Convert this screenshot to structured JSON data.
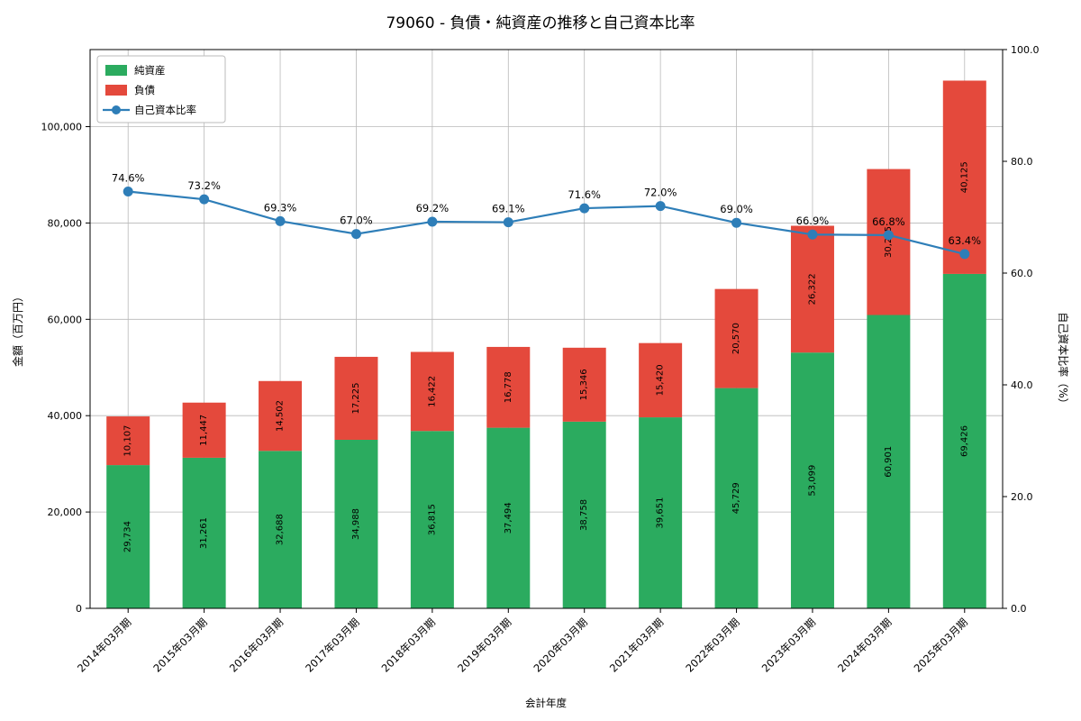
{
  "title": "79060 - 負債・純資産の推移と自己資本比率",
  "colors": {
    "net_assets": "#2bab5f",
    "liabilities": "#e4493c",
    "equity_line": "#2e7eb8",
    "grid": "#b8b8b8",
    "spine": "#000000"
  },
  "chart_data": {
    "type": "bar",
    "stacked": true,
    "title": "79060 - 負債・純資産の推移と自己資本比率",
    "xlabel": "会計年度",
    "ylabel_left": "金額（百万円）",
    "ylabel_right": "自己資本比率（%）",
    "categories": [
      "2014年03月期",
      "2015年03月期",
      "2016年03月期",
      "2017年03月期",
      "2018年03月期",
      "2019年03月期",
      "2020年03月期",
      "2021年03月期",
      "2022年03月期",
      "2023年03月期",
      "2024年03月期",
      "2025年03月期"
    ],
    "series": [
      {
        "name": "純資産",
        "type": "bar",
        "axis": "left",
        "color": "#2bab5f",
        "values": [
          29734,
          31261,
          32688,
          34988,
          36815,
          37494,
          38758,
          39651,
          45729,
          53099,
          60901,
          69426
        ]
      },
      {
        "name": "負債",
        "type": "bar",
        "axis": "left",
        "color": "#e4493c",
        "values": [
          10107,
          11447,
          14502,
          17225,
          16422,
          16778,
          15346,
          15420,
          20570,
          26322,
          30295,
          40125
        ]
      },
      {
        "name": "自己資本比率",
        "type": "line",
        "axis": "right",
        "color": "#2e7eb8",
        "values": [
          74.6,
          73.2,
          69.3,
          67.0,
          69.2,
          69.1,
          71.6,
          72.0,
          69.0,
          66.9,
          66.8,
          63.4
        ]
      }
    ],
    "ylim_left": [
      0,
      116000
    ],
    "ylim_right": [
      0,
      100
    ],
    "yticks_left": [
      0,
      20000,
      40000,
      60000,
      80000,
      100000
    ],
    "yticks_right": [
      0,
      20,
      40,
      60,
      80,
      100
    ],
    "grid": true,
    "legend_position": "upper left"
  }
}
